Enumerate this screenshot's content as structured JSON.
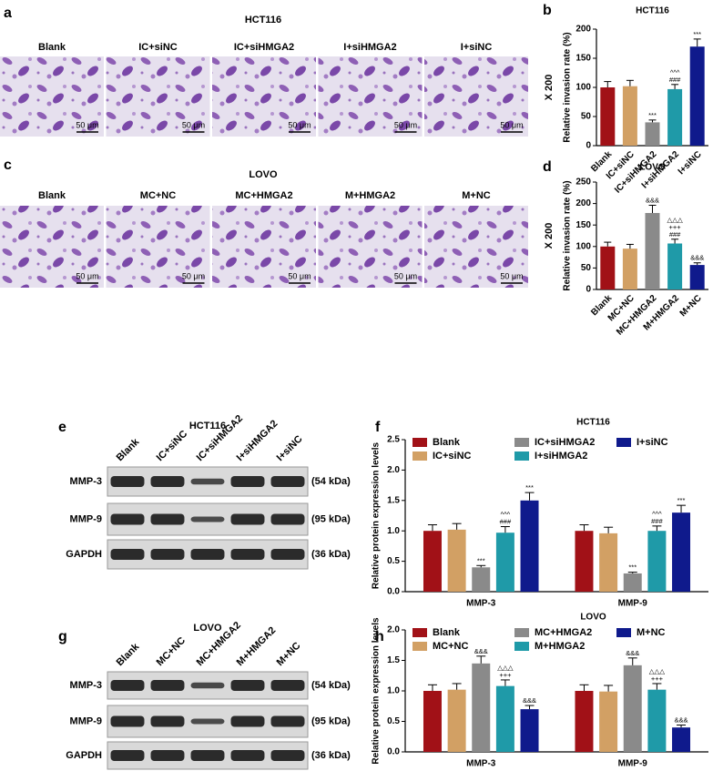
{
  "images": [
    {
      "label": "a",
      "title": "HCT116",
      "names": [
        "Blank",
        "IC+siNC",
        "IC+siHMGA2",
        "I+siHMGA2",
        "I+siNC"
      ],
      "scale": "50 μm"
    },
    {
      "label": "c",
      "title": "LOVO",
      "names": [
        "Blank",
        "MC+NC",
        "MC+HMGA2",
        "M+HMGA2",
        "M+NC"
      ],
      "scale": "50 μm"
    }
  ],
  "blots": [
    {
      "label": "e",
      "title": "HCT116",
      "lanes": [
        "Blank",
        "IC+siNC",
        "IC+siHMGA2",
        "I+siHMGA2",
        "I+siNC"
      ],
      "rows": [
        {
          "name": "MMP-3",
          "size": "(54 kDa)"
        },
        {
          "name": "MMP-9",
          "size": "(95 kDa)"
        },
        {
          "name": "GAPDH",
          "size": "(36 kDa)"
        }
      ]
    },
    {
      "label": "g",
      "title": "LOVO",
      "lanes": [
        "Blank",
        "MC+NC",
        "MC+HMGA2",
        "M+HMGA2",
        "M+NC"
      ],
      "rows": [
        {
          "name": "MMP-3",
          "size": "(54 kDa)"
        },
        {
          "name": "MMP-9",
          "size": "(95 kDa)"
        },
        {
          "name": "GAPDH",
          "size": "(36 kDa)"
        }
      ]
    }
  ],
  "chart_data": [
    {
      "type": "bar",
      "panel_label": "b",
      "title": "HCT116",
      "y_label": "Relative invasion rate (%)",
      "side_note": "X 200",
      "categories": [
        "Blank",
        "IC+siNC",
        "IC+siHMGA2",
        "I+siHMGA2",
        "I+siNC"
      ],
      "values": [
        100,
        102,
        40,
        97,
        170
      ],
      "errors": [
        10,
        10,
        4,
        8,
        13
      ],
      "colors": [
        "#a11117",
        "#d2a064",
        "#8a8a8a",
        "#1f9aa8",
        "#0f1a8c"
      ],
      "annotations": [
        null,
        null,
        [
          "***"
        ],
        [
          "^^^",
          "###"
        ],
        [
          "***"
        ]
      ],
      "ylim": [
        0,
        200
      ],
      "yticks": [
        0,
        50,
        100,
        150,
        200
      ]
    },
    {
      "type": "bar",
      "panel_label": "d",
      "title": "LOVO",
      "y_label": "Relative invasion rate (%)",
      "side_note": "X 200",
      "categories": [
        "Blank",
        "MC+NC",
        "MC+HMGA2",
        "M+HMGA2",
        "M+NC"
      ],
      "values": [
        100,
        95,
        178,
        107,
        57
      ],
      "errors": [
        10,
        10,
        18,
        10,
        5
      ],
      "colors": [
        "#a11117",
        "#d2a064",
        "#8a8a8a",
        "#1f9aa8",
        "#0f1a8c"
      ],
      "annotations": [
        null,
        null,
        [
          "&&&"
        ],
        [
          "△△△",
          "+++",
          "###"
        ],
        [
          "&&&"
        ]
      ],
      "ylim": [
        0,
        250
      ],
      "yticks": [
        0,
        50,
        100,
        150,
        200,
        250
      ]
    },
    {
      "type": "bar",
      "panel_label": "f",
      "title": "HCT116",
      "y_label": "Relative protein expression levels",
      "legend": "top",
      "categories": [
        "MMP-3",
        "MMP-9"
      ],
      "series": [
        {
          "name": "Blank",
          "color": "#a11117",
          "values": [
            1.0,
            1.0
          ],
          "errors": [
            0.1,
            0.1
          ],
          "annotations": [
            null,
            null
          ]
        },
        {
          "name": "IC+siNC",
          "color": "#d2a064",
          "values": [
            1.02,
            0.96
          ],
          "errors": [
            0.1,
            0.1
          ],
          "annotations": [
            null,
            null
          ]
        },
        {
          "name": "IC+siHMGA2",
          "color": "#8a8a8a",
          "values": [
            0.4,
            0.3
          ],
          "errors": [
            0.03,
            0.02
          ],
          "annotations": [
            [
              "***"
            ],
            [
              "***"
            ]
          ]
        },
        {
          "name": "I+siHMGA2",
          "color": "#1f9aa8",
          "values": [
            0.97,
            1.0
          ],
          "errors": [
            0.1,
            0.08
          ],
          "annotations": [
            [
              "^^^",
              "###"
            ],
            [
              "^^^",
              "###"
            ]
          ]
        },
        {
          "name": "I+siNC",
          "color": "#0f1a8c",
          "values": [
            1.5,
            1.3
          ],
          "errors": [
            0.13,
            0.12
          ],
          "annotations": [
            [
              "***"
            ],
            [
              "***"
            ]
          ]
        }
      ],
      "ylim": [
        0,
        2.5
      ],
      "yticks": [
        {
          "value": 0,
          "label": "0.0"
        },
        0.5,
        {
          "value": 1,
          "label": "1.0"
        },
        1.5,
        {
          "value": 2,
          "label": "2.0"
        },
        2.5
      ]
    },
    {
      "type": "bar",
      "panel_label": "h",
      "title": "LOVO",
      "y_label": "Relative protein expression levels",
      "legend": "top",
      "categories": [
        "MMP-3",
        "MMP-9"
      ],
      "series": [
        {
          "name": "Blank",
          "color": "#a11117",
          "values": [
            1.0,
            1.0
          ],
          "errors": [
            0.1,
            0.1
          ],
          "annotations": [
            null,
            null
          ]
        },
        {
          "name": "MC+NC",
          "color": "#d2a064",
          "values": [
            1.02,
            0.99
          ],
          "errors": [
            0.1,
            0.1
          ],
          "annotations": [
            null,
            null
          ]
        },
        {
          "name": "MC+HMGA2",
          "color": "#8a8a8a",
          "values": [
            1.45,
            1.42
          ],
          "errors": [
            0.12,
            0.12
          ],
          "annotations": [
            [
              "&&&"
            ],
            [
              "&&&"
            ]
          ]
        },
        {
          "name": "M+HMGA2",
          "color": "#1f9aa8",
          "values": [
            1.08,
            1.02
          ],
          "errors": [
            0.1,
            0.1
          ],
          "annotations": [
            [
              "△△△",
              "+++"
            ],
            [
              "△△△",
              "+++"
            ]
          ]
        },
        {
          "name": "M+NC",
          "color": "#0f1a8c",
          "values": [
            0.7,
            0.4
          ],
          "errors": [
            0.06,
            0.04
          ],
          "annotations": [
            [
              "&&&"
            ],
            [
              "&&&"
            ]
          ]
        }
      ],
      "ylim": [
        0,
        2.0
      ],
      "yticks": [
        {
          "value": 0,
          "label": "0.0"
        },
        0.5,
        {
          "value": 1,
          "label": "1.0"
        },
        1.5,
        {
          "value": 2,
          "label": "2.0"
        }
      ]
    }
  ]
}
